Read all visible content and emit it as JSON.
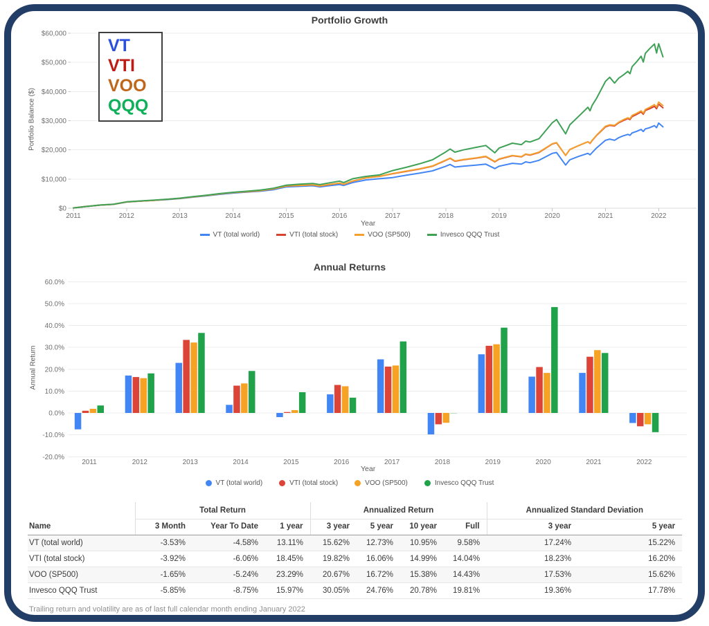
{
  "frame": {
    "border_color": "#233e66"
  },
  "chart_data": [
    {
      "type": "line",
      "title": "Portfolio Growth",
      "xlabel": "Year",
      "ylabel": "Portfolio Balance ($)",
      "ylim": [
        0,
        60000
      ],
      "ytick_step": 10000,
      "xticks": [
        2011,
        2012,
        2013,
        2014,
        2015,
        2016,
        2017,
        2018,
        2019,
        2020,
        2021,
        2022
      ],
      "grid": true,
      "legend_position": "bottom",
      "x": [
        2011.0,
        2011.25,
        2011.5,
        2011.75,
        2012.0,
        2012.25,
        2012.5,
        2012.75,
        2013.0,
        2013.25,
        2013.5,
        2013.75,
        2014.0,
        2014.25,
        2014.5,
        2014.75,
        2015.0,
        2015.25,
        2015.5,
        2015.63,
        2015.75,
        2016.0,
        2016.08,
        2016.25,
        2016.5,
        2016.75,
        2017.0,
        2017.25,
        2017.5,
        2017.75,
        2018.0,
        2018.08,
        2018.17,
        2018.33,
        2018.58,
        2018.75,
        2018.92,
        2019.0,
        2019.25,
        2019.42,
        2019.5,
        2019.58,
        2019.75,
        2020.0,
        2020.08,
        2020.25,
        2020.33,
        2020.5,
        2020.67,
        2020.71,
        2020.75,
        2020.83,
        2021.0,
        2021.08,
        2021.17,
        2021.25,
        2021.33,
        2021.42,
        2021.46,
        2021.5,
        2021.58,
        2021.67,
        2021.71,
        2021.75,
        2021.83,
        2021.92,
        2021.96,
        2022.0,
        2022.08
      ],
      "series": [
        {
          "name": "VT (total world)",
          "ticker": "VT",
          "color": "#4285f4",
          "ticker_color": "#2b4fdd",
          "values": [
            100,
            600,
            1050,
            1300,
            2100,
            2400,
            2650,
            2950,
            3300,
            3800,
            4250,
            4750,
            5200,
            5500,
            5800,
            6300,
            7300,
            7500,
            7700,
            7300,
            7600,
            8100,
            7800,
            8800,
            9700,
            10100,
            10500,
            11300,
            12000,
            12800,
            14400,
            15000,
            14100,
            14400,
            14800,
            15100,
            13600,
            14400,
            15400,
            15100,
            15900,
            15600,
            16400,
            18800,
            19100,
            14800,
            16600,
            17800,
            18800,
            18300,
            19100,
            20600,
            23300,
            23700,
            23300,
            24200,
            24800,
            25300,
            25000,
            25800,
            26300,
            27000,
            26300,
            27200,
            27600,
            28300,
            27600,
            29200,
            27900
          ]
        },
        {
          "name": "VTI (total stock)",
          "ticker": "VTI",
          "color": "#d7432e",
          "ticker_color": "#bf1b15",
          "values": [
            100,
            610,
            1070,
            1330,
            2130,
            2440,
            2690,
            3000,
            3380,
            3900,
            4380,
            4900,
            5350,
            5650,
            6000,
            6600,
            7600,
            7800,
            8000,
            7600,
            7950,
            8600,
            8200,
            9300,
            10400,
            10900,
            11800,
            12600,
            13400,
            14400,
            16400,
            17100,
            16100,
            16600,
            17200,
            17700,
            15900,
            16800,
            18000,
            17600,
            18500,
            18200,
            19100,
            22000,
            22400,
            18100,
            20100,
            21500,
            22800,
            22200,
            23200,
            24900,
            27900,
            28400,
            28200,
            29300,
            30000,
            30700,
            30400,
            31400,
            32100,
            33000,
            32200,
            33500,
            34100,
            34900,
            34100,
            35700,
            34400
          ]
        },
        {
          "name": "VOO (SP500)",
          "ticker": "VOO",
          "color": "#f4a02f",
          "ticker_color": "#c0661b",
          "values": [
            100,
            610,
            1070,
            1330,
            2130,
            2440,
            2690,
            3000,
            3370,
            3890,
            4370,
            4890,
            5360,
            5660,
            6010,
            6610,
            7610,
            7810,
            8010,
            7610,
            7960,
            8610,
            8210,
            9310,
            10410,
            10910,
            11900,
            12700,
            13500,
            14500,
            16500,
            17200,
            16200,
            16700,
            17300,
            17800,
            16000,
            16900,
            18100,
            17700,
            18600,
            18300,
            19200,
            22100,
            22500,
            18100,
            20100,
            21500,
            22800,
            22300,
            23300,
            25000,
            28100,
            28600,
            28400,
            29500,
            30300,
            31000,
            30700,
            31800,
            32500,
            33400,
            32600,
            33900,
            34600,
            35500,
            34700,
            36400,
            35200
          ]
        },
        {
          "name": "Invesco QQQ Trust",
          "ticker": "QQQ",
          "color": "#3fa156",
          "ticker_color": "#0fb059",
          "values": [
            100,
            620,
            1090,
            1360,
            2170,
            2500,
            2750,
            3060,
            3430,
            3970,
            4450,
            5000,
            5450,
            5800,
            6200,
            6800,
            7900,
            8250,
            8500,
            8100,
            8500,
            9300,
            8800,
            10100,
            10900,
            11400,
            12900,
            14000,
            15200,
            16600,
            19300,
            20300,
            19200,
            20000,
            20900,
            21500,
            19000,
            20600,
            22300,
            21800,
            23000,
            22700,
            23800,
            29300,
            30400,
            25500,
            28600,
            31600,
            34600,
            33400,
            35300,
            37600,
            43500,
            44900,
            42900,
            44600,
            45600,
            46900,
            46100,
            48500,
            50100,
            52100,
            50100,
            53100,
            54700,
            56300,
            53200,
            56400,
            51900
          ]
        }
      ]
    },
    {
      "type": "bar",
      "title": "Annual Returns",
      "xlabel": "Year",
      "ylabel": "Annual Return",
      "ylim": [
        -20,
        60
      ],
      "ytick_step": 10,
      "grid": true,
      "legend_position": "bottom",
      "categories": [
        2011,
        2012,
        2013,
        2014,
        2015,
        2016,
        2017,
        2018,
        2019,
        2020,
        2021,
        2022
      ],
      "series": [
        {
          "name": "VT (total world)",
          "ticker": "VT",
          "color": "#4285f4",
          "values": [
            -7.5,
            17.1,
            22.9,
            3.7,
            -1.9,
            8.5,
            24.5,
            -9.8,
            26.8,
            16.6,
            18.3,
            -4.6
          ]
        },
        {
          "name": "VTI (total stock)",
          "ticker": "VTI",
          "color": "#db4437",
          "values": [
            1.0,
            16.4,
            33.4,
            12.5,
            0.4,
            12.8,
            21.2,
            -5.2,
            30.7,
            21.0,
            25.7,
            -6.1
          ]
        },
        {
          "name": "VOO (SP500)",
          "ticker": "VOO",
          "color": "#f6a225",
          "values": [
            1.9,
            15.9,
            32.2,
            13.5,
            1.3,
            12.2,
            21.7,
            -4.5,
            31.4,
            18.3,
            28.7,
            -5.2
          ]
        },
        {
          "name": "Invesco QQQ Trust",
          "ticker": "QQQ",
          "color": "#1fa24a",
          "values": [
            3.4,
            18.1,
            36.6,
            19.2,
            9.5,
            7.0,
            32.7,
            -0.1,
            39.0,
            48.4,
            27.4,
            -8.8
          ]
        }
      ]
    }
  ],
  "table": {
    "name_header": "Name",
    "groups": [
      {
        "label": "Total Return",
        "span": 3
      },
      {
        "label": "Annualized Return",
        "span": 4
      },
      {
        "label": "Annualized Standard Deviation",
        "span": 2
      }
    ],
    "columns": [
      "3 Month",
      "Year To Date",
      "1 year",
      "3 year",
      "5 year",
      "10 year",
      "Full",
      "3 year",
      "5 year"
    ],
    "rows": [
      {
        "name": "VT (total world)",
        "values": [
          "-3.53%",
          "-4.58%",
          "13.11%",
          "15.62%",
          "12.73%",
          "10.95%",
          "9.58%",
          "17.24%",
          "15.22%"
        ]
      },
      {
        "name": "VTI (total stock)",
        "values": [
          "-3.92%",
          "-6.06%",
          "18.45%",
          "19.82%",
          "16.06%",
          "14.99%",
          "14.04%",
          "18.23%",
          "16.20%"
        ]
      },
      {
        "name": "VOO (SP500)",
        "values": [
          "-1.65%",
          "-5.24%",
          "23.29%",
          "20.67%",
          "16.72%",
          "15.38%",
          "14.43%",
          "17.53%",
          "15.62%"
        ]
      },
      {
        "name": "Invesco QQQ Trust",
        "values": [
          "-5.85%",
          "-8.75%",
          "15.97%",
          "30.05%",
          "24.76%",
          "20.78%",
          "19.81%",
          "19.36%",
          "17.78%"
        ]
      }
    ],
    "footnote": "Trailing return and volatility are as of last full calendar month ending January 2022"
  }
}
